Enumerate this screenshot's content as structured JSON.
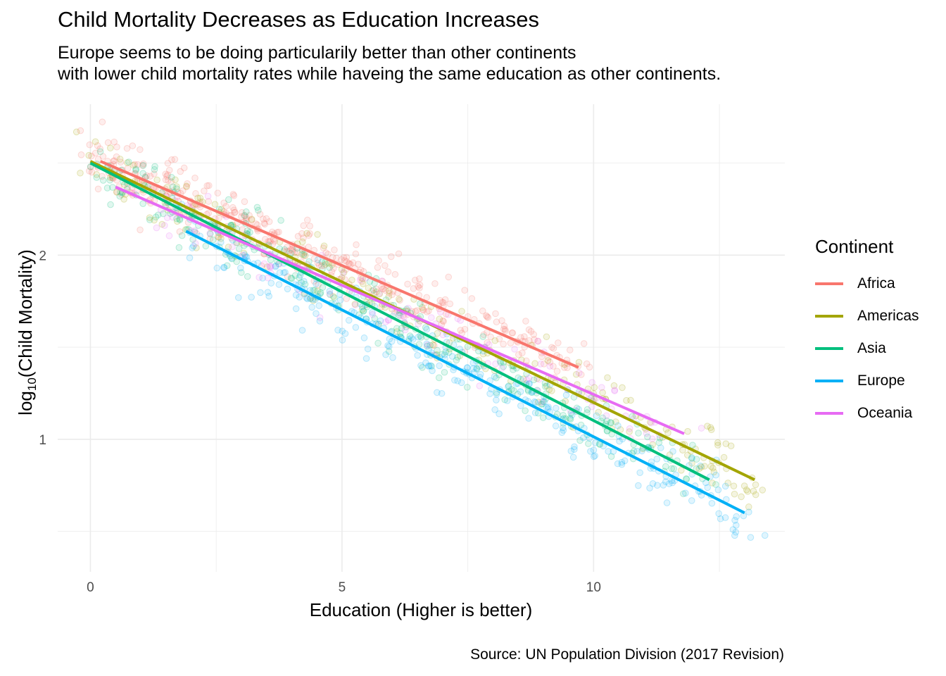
{
  "chart_data": {
    "type": "scatter",
    "title": "Child Mortality Decreases as Education Increases",
    "subtitle_lines": [
      "Europe seems to be doing particularily better than other continents",
      "with lower child mortality rates while haveing the same education as other continents."
    ],
    "caption": "Source: UN Population Division (2017 Revision)",
    "xlabel": "Education (Higher is better)",
    "ylabel_prefix": "log",
    "ylabel_sub": "10",
    "ylabel_suffix": "(Child Mortality)",
    "xlim": [
      -0.65,
      13.8
    ],
    "ylim": [
      0.28,
      2.82
    ],
    "x_ticks": [
      0,
      5,
      10
    ],
    "y_ticks": [
      1,
      2
    ],
    "legend_title": "Continent",
    "series": [
      {
        "name": "Africa",
        "color": "#F8766D",
        "fit_line": [
          [
            0.2,
            2.51
          ],
          [
            9.7,
            1.39
          ]
        ]
      },
      {
        "name": "Americas",
        "color": "#A3A500",
        "fit_line": [
          [
            0.0,
            2.51
          ],
          [
            13.2,
            0.78
          ]
        ]
      },
      {
        "name": "Asia",
        "color": "#00BF7D",
        "fit_line": [
          [
            0.0,
            2.5
          ],
          [
            12.3,
            0.78
          ]
        ]
      },
      {
        "name": "Europe",
        "color": "#00B0F6",
        "fit_line": [
          [
            1.9,
            2.13
          ],
          [
            13.0,
            0.6
          ]
        ]
      },
      {
        "name": "Oceania",
        "color": "#E76BF3",
        "fit_line": [
          [
            0.5,
            2.37
          ],
          [
            11.8,
            1.03
          ]
        ]
      }
    ]
  }
}
